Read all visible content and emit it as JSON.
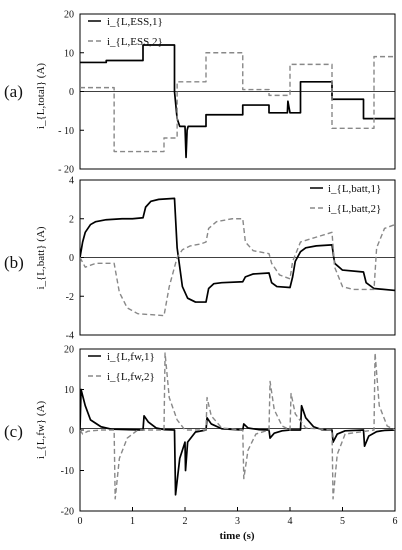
{
  "chart_data": [
    {
      "type": "line",
      "panel_label": "(a)",
      "ylabel": "i_{L,total} (A)",
      "ylim": [
        -20,
        20
      ],
      "yticks": [
        "20",
        "10",
        "0",
        "- 10",
        "- 20"
      ],
      "ytick_values": [
        20,
        10,
        0,
        -10,
        -20
      ],
      "xlim": [
        0,
        6
      ],
      "legend_position": "top-left",
      "series": [
        {
          "name": "i_{L,ESS,1}",
          "color": "#000000",
          "dash": "solid",
          "x": [
            0,
            0.5,
            0.5,
            1.2,
            1.2,
            1.8,
            1.8,
            1.85,
            1.9,
            1.95,
            2.0,
            2.02,
            2.04,
            2.06,
            2.1,
            2.4,
            2.4,
            3.1,
            3.1,
            3.6,
            3.6,
            3.95,
            3.96,
            3.98,
            4.0,
            4.0,
            4.2,
            4.2,
            4.8,
            4.8,
            5.4,
            5.4,
            6.0
          ],
          "values": [
            7.5,
            7.5,
            8,
            8,
            12,
            12,
            0,
            -7,
            -9,
            -9,
            -9,
            -17,
            -10,
            -9,
            -9,
            -9,
            -6,
            -6,
            -3.5,
            -3.5,
            -5.5,
            -5.5,
            -2.5,
            -4,
            -5.5,
            -5.5,
            -5.5,
            2.5,
            2.5,
            -2,
            -2,
            -7,
            -7
          ]
        },
        {
          "name": "i_{L,ESS,2}",
          "color": "#888888",
          "dash": "dashed",
          "x": [
            0,
            0.65,
            0.65,
            1.6,
            1.6,
            1.85,
            1.85,
            2.4,
            2.4,
            3.1,
            3.1,
            3.6,
            3.6,
            4.0,
            4.0,
            4.8,
            4.8,
            5.6,
            5.6,
            6.0
          ],
          "values": [
            1,
            1,
            -15.5,
            -15.5,
            -12,
            -12,
            2.5,
            2.5,
            10,
            10,
            0.5,
            0.5,
            -1,
            -1,
            7,
            7,
            -9.5,
            -9.5,
            9,
            9
          ]
        }
      ]
    },
    {
      "type": "line",
      "panel_label": "(b)",
      "ylabel": "i_{L,batt} (A)",
      "ylim": [
        -4,
        4
      ],
      "yticks": [
        "4",
        "2",
        "0",
        "-2",
        "-4"
      ],
      "ytick_values": [
        4,
        2,
        0,
        -2,
        -4
      ],
      "xlim": [
        0,
        6
      ],
      "legend_position": "top-right",
      "series": [
        {
          "name": "i_{L,batt,1}",
          "color": "#000000",
          "dash": "solid",
          "x": [
            0,
            0.05,
            0.1,
            0.2,
            0.3,
            0.5,
            0.8,
            1.0,
            1.2,
            1.25,
            1.35,
            1.5,
            1.8,
            1.85,
            1.95,
            2.05,
            2.2,
            2.4,
            2.45,
            2.55,
            2.7,
            3.1,
            3.15,
            3.3,
            3.6,
            3.65,
            3.75,
            4.0,
            4.05,
            4.1,
            4.2,
            4.3,
            4.5,
            4.8,
            4.85,
            5.0,
            5.4,
            5.45,
            5.6,
            6.0
          ],
          "values": [
            0,
            0.8,
            1.3,
            1.7,
            1.85,
            1.95,
            2.0,
            2.0,
            2.05,
            2.6,
            2.9,
            3.0,
            3.05,
            0.5,
            -1.5,
            -2.1,
            -2.3,
            -2.3,
            -1.6,
            -1.35,
            -1.3,
            -1.25,
            -1.0,
            -0.85,
            -0.8,
            -1.3,
            -1.5,
            -1.55,
            -1.0,
            -0.2,
            0.3,
            0.5,
            0.6,
            0.65,
            -0.3,
            -0.65,
            -0.75,
            -1.3,
            -1.6,
            -1.7
          ]
        },
        {
          "name": "i_{L,batt,2}",
          "color": "#888888",
          "dash": "dashed",
          "x": [
            0,
            0.1,
            0.3,
            0.65,
            0.75,
            0.9,
            1.1,
            1.6,
            1.7,
            1.8,
            1.85,
            1.95,
            2.1,
            2.3,
            2.4,
            2.45,
            2.6,
            2.9,
            3.1,
            3.15,
            3.3,
            3.6,
            3.65,
            3.8,
            4.0,
            4.05,
            4.2,
            4.8,
            4.85,
            5.0,
            5.2,
            5.6,
            5.65,
            5.8,
            6.0
          ],
          "values": [
            0,
            -0.5,
            -0.3,
            -0.3,
            -1.8,
            -2.6,
            -2.9,
            -3.0,
            -1.5,
            -0.5,
            0.0,
            0.4,
            0.6,
            0.7,
            0.8,
            1.5,
            1.85,
            2.0,
            2.0,
            0.8,
            0.35,
            0.2,
            -0.3,
            -0.9,
            -1.1,
            -0.2,
            0.8,
            1.3,
            -0.5,
            -1.5,
            -1.65,
            -1.65,
            0.5,
            1.5,
            1.7
          ]
        }
      ]
    },
    {
      "type": "line",
      "panel_label": "(c)",
      "ylabel": "i_{L,fw} (A)",
      "ylim": [
        -20,
        20
      ],
      "yticks": [
        "20",
        "10",
        "0",
        "-10",
        "-20"
      ],
      "ytick_values": [
        20,
        10,
        0,
        -10,
        -20
      ],
      "xlim": [
        0,
        6
      ],
      "xticks": [
        "0",
        "1",
        "2",
        "3",
        "4",
        "5",
        "6"
      ],
      "xtick_values": [
        0,
        1,
        2,
        3,
        4,
        5,
        6
      ],
      "xlabel": "time (s)",
      "legend_position": "top-left",
      "series": [
        {
          "name": "i_{L,fw,1}",
          "color": "#000000",
          "dash": "solid",
          "x": [
            0,
            0.02,
            0.1,
            0.2,
            0.4,
            0.6,
            1.2,
            1.22,
            1.3,
            1.45,
            1.6,
            1.8,
            1.82,
            1.9,
            2.0,
            2.01,
            2.05,
            2.2,
            2.4,
            2.42,
            2.5,
            2.7,
            3.1,
            3.12,
            3.2,
            3.4,
            3.6,
            3.62,
            3.7,
            3.85,
            4.0,
            4.2,
            4.22,
            4.3,
            4.45,
            4.6,
            4.8,
            4.82,
            4.9,
            5.05,
            5.4,
            5.42,
            5.5,
            5.65,
            5.8,
            6.0
          ],
          "values": [
            0,
            10,
            6,
            2.5,
            0.8,
            0.2,
            0,
            3.5,
            2,
            0.5,
            0.1,
            0,
            -16,
            -7,
            -3,
            -10,
            -3,
            -0.5,
            0,
            3,
            1.5,
            0.3,
            0,
            1.5,
            0.5,
            0.1,
            0,
            -2,
            -0.8,
            -0.2,
            0,
            0,
            6,
            3,
            0.8,
            0.1,
            0,
            -3,
            -1,
            -0.2,
            0,
            -4,
            -1.5,
            -0.4,
            -0.1,
            0
          ]
        },
        {
          "name": "i_{L,fw,2}",
          "color": "#888888",
          "dash": "dashed",
          "x": [
            0,
            0.05,
            0.15,
            0.4,
            0.65,
            0.67,
            0.75,
            0.9,
            1.1,
            1.6,
            1.62,
            1.7,
            1.85,
            2.0,
            2.4,
            2.42,
            2.5,
            2.7,
            3.1,
            3.12,
            3.2,
            3.35,
            3.6,
            3.62,
            3.7,
            3.85,
            4.0,
            4.02,
            4.1,
            4.3,
            4.8,
            4.82,
            4.9,
            5.05,
            5.6,
            5.62,
            5.7,
            5.85,
            6.0
          ],
          "values": [
            0,
            -1,
            -0.3,
            0,
            0,
            -17,
            -7,
            -2,
            0,
            0,
            19,
            8,
            2.5,
            0,
            0,
            8,
            3.5,
            0.5,
            0,
            -12,
            -5,
            -1,
            0,
            12,
            5,
            1,
            0,
            9,
            4,
            0.5,
            0,
            -17,
            -6,
            -1,
            0,
            19,
            6,
            1,
            0
          ]
        }
      ]
    }
  ]
}
